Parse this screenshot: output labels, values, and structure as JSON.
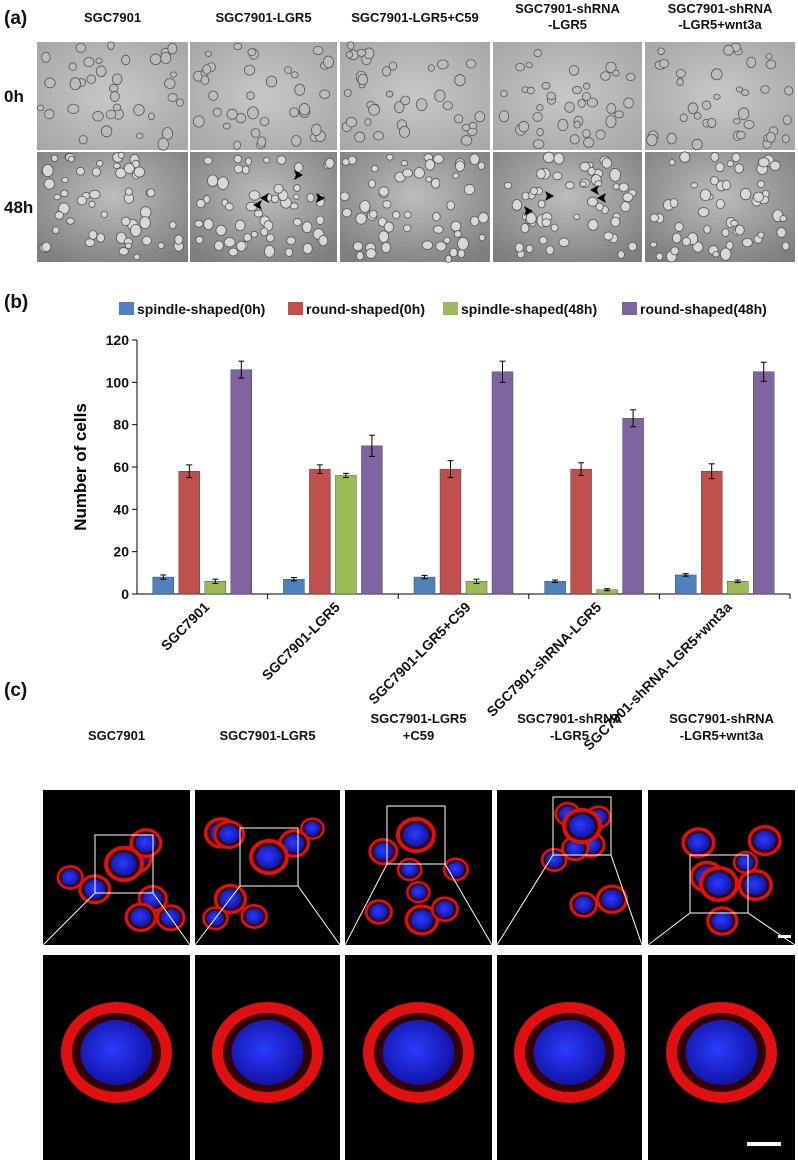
{
  "panels": {
    "a": {
      "label": "(a)",
      "columns": [
        [
          "SGC7901"
        ],
        [
          "SGC7901-LGR5"
        ],
        [
          "SGC7901-LGR5+C59"
        ],
        [
          "SGC7901-shRNA",
          "-LGR5"
        ],
        [
          "SGC7901-shRNA",
          "-LGR5+wnt3a"
        ]
      ],
      "rows": [
        "0h",
        "48h"
      ]
    },
    "b": {
      "label": "(b)"
    },
    "c": {
      "label": "(c)",
      "columns": [
        [
          "SGC7901"
        ],
        [
          "SGC7901-LGR5"
        ],
        [
          "SGC7901-LGR5",
          "+C59"
        ],
        [
          "SGC7901-shRNA",
          "-LGR5"
        ],
        [
          "SGC7901-shRNA",
          "-LGR5+wnt3a"
        ]
      ]
    }
  },
  "chart_data": {
    "type": "bar",
    "y_label": "Number of cells",
    "categories": [
      "SGC7901",
      "SGC7901-LGR5",
      "SGC7901-LGR5+C59",
      "SGC7901-shRNA-LGR5",
      "SGC7901-shRNA-LGR5+wnt3a"
    ],
    "series": [
      {
        "name": "spindle-shaped(0h)",
        "color": "#4f81bd",
        "values": [
          8,
          7,
          8,
          6,
          9
        ],
        "errors": [
          1,
          0.8,
          0.8,
          0.6,
          0.6
        ]
      },
      {
        "name": "round-shaped(0h)",
        "color": "#c0504d",
        "values": [
          58,
          59,
          59,
          59,
          58
        ],
        "errors": [
          3,
          2,
          4,
          3,
          3.5
        ]
      },
      {
        "name": "spindle-shaped(48h)",
        "color": "#9bbb59",
        "values": [
          6,
          56,
          6,
          2,
          6
        ],
        "errors": [
          1,
          1,
          1,
          0.5,
          0.6
        ]
      },
      {
        "name": "round-shaped(48h)",
        "color": "#8064a2",
        "values": [
          106,
          70,
          105,
          83,
          105
        ],
        "errors": [
          4,
          5,
          5,
          4,
          4.5
        ]
      }
    ],
    "ylim": [
      0,
      120
    ],
    "yticks": [
      0,
      20,
      40,
      60,
      80,
      100,
      120
    ],
    "legend": "top",
    "grid": false
  }
}
